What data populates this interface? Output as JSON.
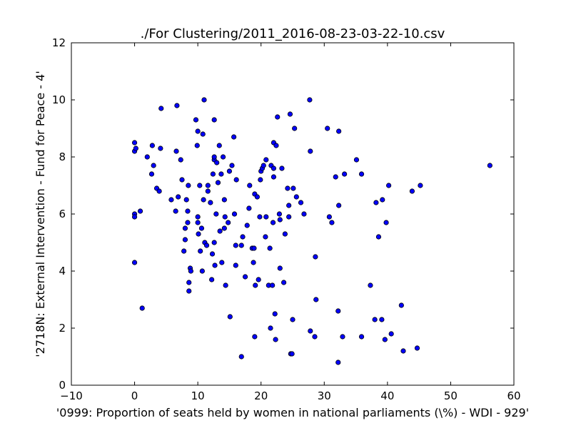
{
  "chart_data": {
    "type": "scatter",
    "title": "./For Clustering/2011_2016-08-23-03-22-10.csv",
    "xlabel": "'0999: Proportion of seats held by women in national parliaments  (\\%) - WDI - 929'",
    "ylabel": "'2718N: External Intervention - Fund for Peace - 4'",
    "xlim": [
      -10,
      60
    ],
    "ylim": [
      0,
      12
    ],
    "xticks": [
      -10,
      0,
      10,
      20,
      30,
      40,
      50,
      60
    ],
    "yticks": [
      0,
      2,
      4,
      6,
      8,
      10,
      12
    ],
    "xtick_labels": [
      "−10",
      "0",
      "10",
      "20",
      "30",
      "40",
      "50",
      "60"
    ],
    "ytick_labels": [
      "0",
      "2",
      "4",
      "6",
      "8",
      "10",
      "12"
    ],
    "grid": false,
    "marker_color": "#0000ff",
    "marker_edge": "#000000",
    "points": [
      [
        0.0,
        8.5
      ],
      [
        0.0,
        8.2
      ],
      [
        0.2,
        8.3
      ],
      [
        0.0,
        6.0
      ],
      [
        0.0,
        5.9
      ],
      [
        0.9,
        6.1
      ],
      [
        0.0,
        4.3
      ],
      [
        1.2,
        2.7
      ],
      [
        2.0,
        8.0
      ],
      [
        2.8,
        8.4
      ],
      [
        3.0,
        7.7
      ],
      [
        2.7,
        7.4
      ],
      [
        3.5,
        6.9
      ],
      [
        3.9,
        6.8
      ],
      [
        4.1,
        8.3
      ],
      [
        4.2,
        9.7
      ],
      [
        5.8,
        6.5
      ],
      [
        6.5,
        6.1
      ],
      [
        6.6,
        8.2
      ],
      [
        6.7,
        9.8
      ],
      [
        6.9,
        6.6
      ],
      [
        7.3,
        7.9
      ],
      [
        7.5,
        7.2
      ],
      [
        7.8,
        4.7
      ],
      [
        8.0,
        5.1
      ],
      [
        8.0,
        5.5
      ],
      [
        8.2,
        6.5
      ],
      [
        8.5,
        7.0
      ],
      [
        8.4,
        5.7
      ],
      [
        8.4,
        6.1
      ],
      [
        8.6,
        3.3
      ],
      [
        8.6,
        3.6
      ],
      [
        8.8,
        4.1
      ],
      [
        8.9,
        4.0
      ],
      [
        9.7,
        9.3
      ],
      [
        10.0,
        8.9
      ],
      [
        9.9,
        8.4
      ],
      [
        10.0,
        5.9
      ],
      [
        10.0,
        5.7
      ],
      [
        10.1,
        5.3
      ],
      [
        10.3,
        7.0
      ],
      [
        10.4,
        4.7
      ],
      [
        10.6,
        5.5
      ],
      [
        10.8,
        8.8
      ],
      [
        10.7,
        4.0
      ],
      [
        10.9,
        6.5
      ],
      [
        11.0,
        10.0
      ],
      [
        11.1,
        5.0
      ],
      [
        11.4,
        4.9
      ],
      [
        11.6,
        6.8
      ],
      [
        11.6,
        7.0
      ],
      [
        12.0,
        6.4
      ],
      [
        12.2,
        3.7
      ],
      [
        12.3,
        4.6
      ],
      [
        12.4,
        7.4
      ],
      [
        12.6,
        7.9
      ],
      [
        12.6,
        8.0
      ],
      [
        12.6,
        9.3
      ],
      [
        12.7,
        4.2
      ],
      [
        12.6,
        5.0
      ],
      [
        12.9,
        6.0
      ],
      [
        13.0,
        7.8
      ],
      [
        13.2,
        7.1
      ],
      [
        13.4,
        8.4
      ],
      [
        13.5,
        5.4
      ],
      [
        13.7,
        7.4
      ],
      [
        13.8,
        4.3
      ],
      [
        14.0,
        8.0
      ],
      [
        14.2,
        6.5
      ],
      [
        14.2,
        5.5
      ],
      [
        14.3,
        5.9
      ],
      [
        14.4,
        3.5
      ],
      [
        14.8,
        5.7
      ],
      [
        15.0,
        7.5
      ],
      [
        15.1,
        2.4
      ],
      [
        15.4,
        7.7
      ],
      [
        15.7,
        8.7
      ],
      [
        15.8,
        6.0
      ],
      [
        16.0,
        4.9
      ],
      [
        16.0,
        4.2
      ],
      [
        16.1,
        7.2
      ],
      [
        16.9,
        1.0
      ],
      [
        16.9,
        4.9
      ],
      [
        17.1,
        5.2
      ],
      [
        17.5,
        3.8
      ],
      [
        17.8,
        5.6
      ],
      [
        18.1,
        6.2
      ],
      [
        18.2,
        7.0
      ],
      [
        18.6,
        4.8
      ],
      [
        18.8,
        4.3
      ],
      [
        18.9,
        4.8
      ],
      [
        19.0,
        1.7
      ],
      [
        19.0,
        6.7
      ],
      [
        19.1,
        3.5
      ],
      [
        19.4,
        6.6
      ],
      [
        19.6,
        3.7
      ],
      [
        19.8,
        5.9
      ],
      [
        19.9,
        7.2
      ],
      [
        20.0,
        7.5
      ],
      [
        20.2,
        7.6
      ],
      [
        20.4,
        7.7
      ],
      [
        20.7,
        5.2
      ],
      [
        20.8,
        5.9
      ],
      [
        20.8,
        7.9
      ],
      [
        21.2,
        3.5
      ],
      [
        21.4,
        4.8
      ],
      [
        21.5,
        2.0
      ],
      [
        21.6,
        7.7
      ],
      [
        21.8,
        3.5
      ],
      [
        21.9,
        5.7
      ],
      [
        22.0,
        8.5
      ],
      [
        22.0,
        7.3
      ],
      [
        22.0,
        7.6
      ],
      [
        22.2,
        2.5
      ],
      [
        22.3,
        1.6
      ],
      [
        22.4,
        8.4
      ],
      [
        22.6,
        9.4
      ],
      [
        22.9,
        6.0
      ],
      [
        23.0,
        5.8
      ],
      [
        23.0,
        4.1
      ],
      [
        23.3,
        7.6
      ],
      [
        23.6,
        3.6
      ],
      [
        23.8,
        5.3
      ],
      [
        24.2,
        6.9
      ],
      [
        24.4,
        5.9
      ],
      [
        24.4,
        6.3
      ],
      [
        24.6,
        9.5
      ],
      [
        24.7,
        1.1
      ],
      [
        24.9,
        1.1
      ],
      [
        25.0,
        2.3
      ],
      [
        25.1,
        6.9
      ],
      [
        25.3,
        9.0
      ],
      [
        25.6,
        6.6
      ],
      [
        26.3,
        6.4
      ],
      [
        26.8,
        6.0
      ],
      [
        27.7,
        10.0
      ],
      [
        27.8,
        1.9
      ],
      [
        27.8,
        8.2
      ],
      [
        28.5,
        1.7
      ],
      [
        28.6,
        4.5
      ],
      [
        28.7,
        3.0
      ],
      [
        30.5,
        9.0
      ],
      [
        30.8,
        5.9
      ],
      [
        31.2,
        5.7
      ],
      [
        31.8,
        7.3
      ],
      [
        32.2,
        2.6
      ],
      [
        32.2,
        0.8
      ],
      [
        32.3,
        8.9
      ],
      [
        32.3,
        6.3
      ],
      [
        32.9,
        1.7
      ],
      [
        33.2,
        7.4
      ],
      [
        35.1,
        7.9
      ],
      [
        35.9,
        1.7
      ],
      [
        35.9,
        7.4
      ],
      [
        37.3,
        3.5
      ],
      [
        38.0,
        2.3
      ],
      [
        38.2,
        6.4
      ],
      [
        38.6,
        5.2
      ],
      [
        39.1,
        2.3
      ],
      [
        39.2,
        6.5
      ],
      [
        39.6,
        1.6
      ],
      [
        39.8,
        5.7
      ],
      [
        40.2,
        7.0
      ],
      [
        40.6,
        1.8
      ],
      [
        42.2,
        2.8
      ],
      [
        42.5,
        1.2
      ],
      [
        43.9,
        6.8
      ],
      [
        44.7,
        1.3
      ],
      [
        45.2,
        7.0
      ],
      [
        56.2,
        7.7
      ]
    ]
  }
}
